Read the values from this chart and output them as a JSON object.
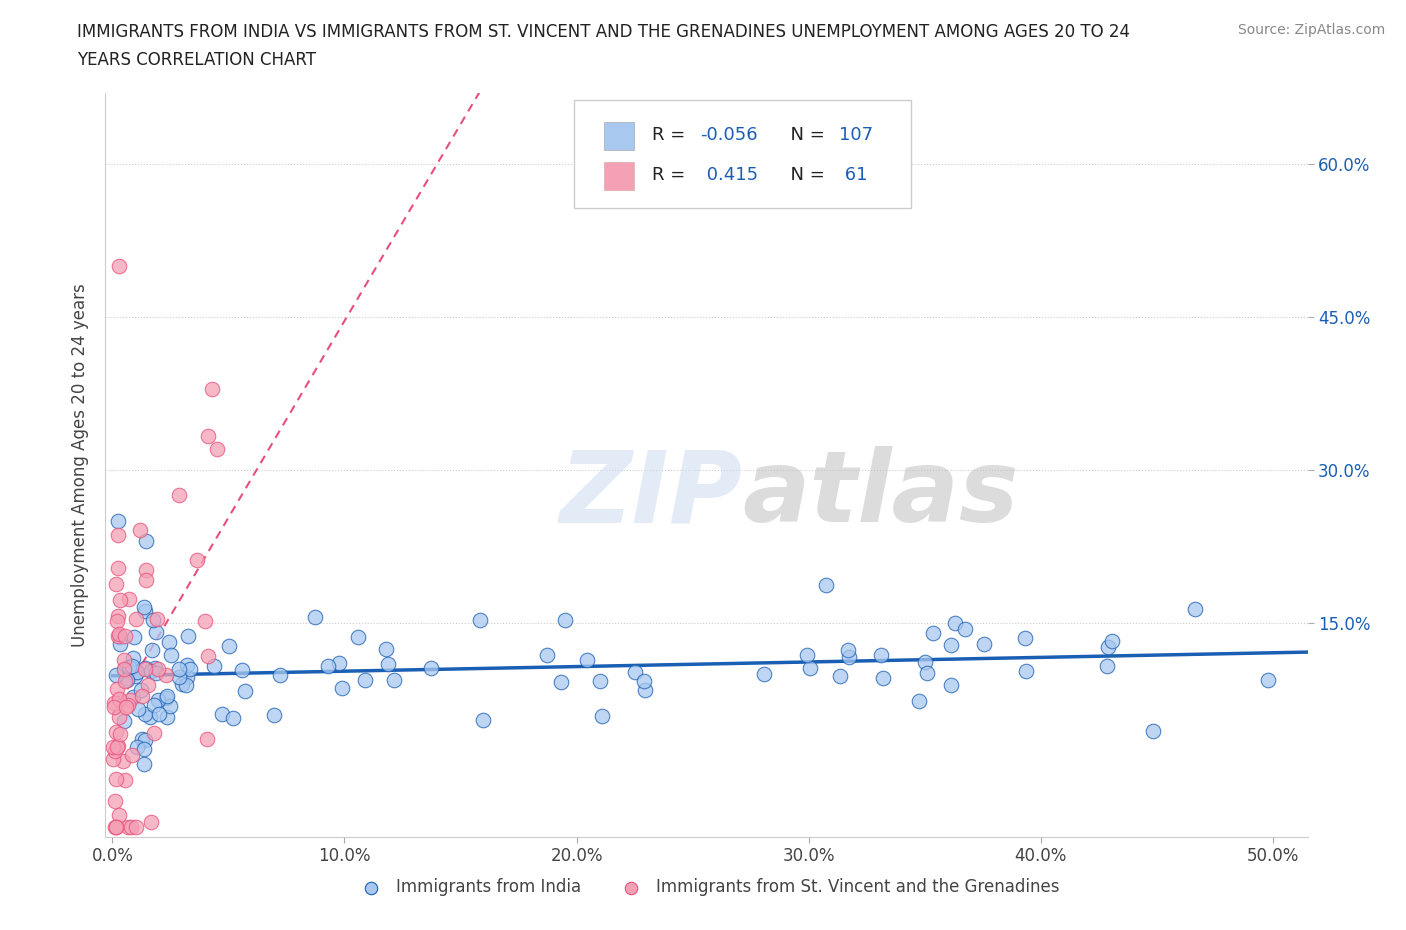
{
  "title_line1": "IMMIGRANTS FROM INDIA VS IMMIGRANTS FROM ST. VINCENT AND THE GRENADINES UNEMPLOYMENT AMONG AGES 20 TO 24",
  "title_line2": "YEARS CORRELATION CHART",
  "source": "Source: ZipAtlas.com",
  "ylabel": "Unemployment Among Ages 20 to 24 years",
  "x_tick_values": [
    0.0,
    0.1,
    0.2,
    0.3,
    0.4,
    0.5
  ],
  "x_tick_labels": [
    "0.0%",
    "10.0%",
    "20.0%",
    "30.0%",
    "40.0%",
    "50.0%"
  ],
  "y_tick_values": [
    0.15,
    0.3,
    0.45,
    0.6
  ],
  "y_tick_labels": [
    "15.0%",
    "30.0%",
    "45.0%",
    "60.0%"
  ],
  "xlim": [
    -0.003,
    0.515
  ],
  "ylim": [
    -0.06,
    0.67
  ],
  "legend_R1": "-0.056",
  "legend_N1": "107",
  "legend_R2": "0.415",
  "legend_N2": "61",
  "color_india": "#a8c8f0",
  "color_svg": "#f4a0b5",
  "color_india_line": "#1a5fb4",
  "color_svg_line": "#e8507a",
  "series1_label": "Immigrants from India",
  "series2_label": "Immigrants from St. Vincent and the Grenadines"
}
